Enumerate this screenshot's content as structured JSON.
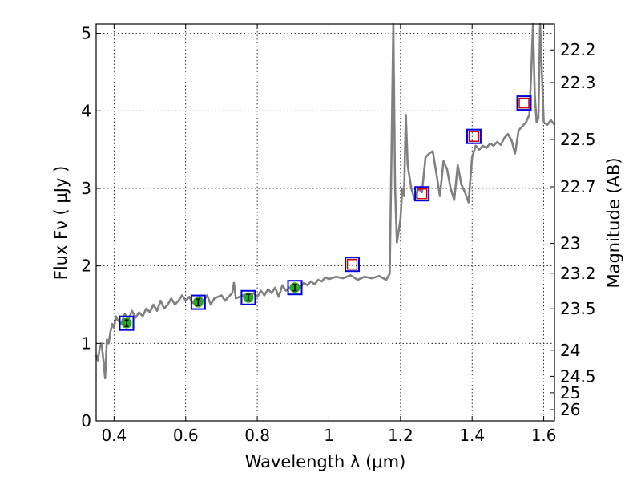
{
  "chart_data": {
    "type": "line",
    "title": "",
    "xlabel": "Wavelength  λ (μm)",
    "ylabel": "Flux  Fν  ( μJy )",
    "y2label": "Magnitude (AB)",
    "xlim": [
      0.35,
      1.63
    ],
    "ylim": [
      0,
      5.12
    ],
    "grid": true,
    "x_ticks": [
      {
        "value": 0.4,
        "label": "0.4"
      },
      {
        "value": 0.6,
        "label": "0.6"
      },
      {
        "value": 0.8,
        "label": "0.8"
      },
      {
        "value": 1.0,
        "label": "1"
      },
      {
        "value": 1.2,
        "label": "1.2"
      },
      {
        "value": 1.4,
        "label": "1.4"
      },
      {
        "value": 1.6,
        "label": "1.6"
      }
    ],
    "y_ticks": [
      {
        "value": 0,
        "label": "0"
      },
      {
        "value": 1,
        "label": "1"
      },
      {
        "value": 2,
        "label": "2"
      },
      {
        "value": 3,
        "label": "3"
      },
      {
        "value": 4,
        "label": "4"
      },
      {
        "value": 5,
        "label": "5"
      }
    ],
    "mag_ticks": [
      {
        "value": 22.2,
        "label": "22.2"
      },
      {
        "value": 22.3,
        "label": "22.3"
      },
      {
        "value": 22.5,
        "label": "22.5"
      },
      {
        "value": 22.7,
        "label": "22.7"
      },
      {
        "value": 23.0,
        "label": "23"
      },
      {
        "value": 23.2,
        "label": "23.2"
      },
      {
        "value": 23.5,
        "label": "23.5"
      },
      {
        "value": 24.0,
        "label": "24"
      },
      {
        "value": 24.5,
        "label": "24.5"
      },
      {
        "value": 25.0,
        "label": "25"
      },
      {
        "value": 26.0,
        "label": "26"
      }
    ],
    "spectrum": {
      "color": "#808080",
      "x": [
        0.35,
        0.355,
        0.36,
        0.365,
        0.37,
        0.375,
        0.38,
        0.385,
        0.39,
        0.395,
        0.4,
        0.405,
        0.41,
        0.42,
        0.43,
        0.44,
        0.45,
        0.46,
        0.47,
        0.48,
        0.49,
        0.5,
        0.51,
        0.52,
        0.53,
        0.54,
        0.55,
        0.56,
        0.57,
        0.58,
        0.59,
        0.6,
        0.61,
        0.62,
        0.63,
        0.64,
        0.65,
        0.66,
        0.67,
        0.68,
        0.69,
        0.7,
        0.71,
        0.72,
        0.73,
        0.735,
        0.74,
        0.75,
        0.76,
        0.77,
        0.78,
        0.79,
        0.8,
        0.81,
        0.82,
        0.83,
        0.84,
        0.85,
        0.86,
        0.87,
        0.88,
        0.89,
        0.9,
        0.91,
        0.92,
        0.93,
        0.94,
        0.95,
        0.96,
        0.97,
        0.98,
        0.99,
        1.0,
        1.02,
        1.04,
        1.06,
        1.08,
        1.1,
        1.12,
        1.14,
        1.16,
        1.17,
        1.175,
        1.18,
        1.185,
        1.19,
        1.2,
        1.205,
        1.21,
        1.215,
        1.22,
        1.23,
        1.24,
        1.25,
        1.26,
        1.27,
        1.28,
        1.29,
        1.3,
        1.31,
        1.32,
        1.33,
        1.34,
        1.35,
        1.36,
        1.37,
        1.38,
        1.39,
        1.4,
        1.41,
        1.42,
        1.43,
        1.44,
        1.45,
        1.46,
        1.47,
        1.48,
        1.49,
        1.5,
        1.51,
        1.52,
        1.53,
        1.54,
        1.55,
        1.56,
        1.565,
        1.57,
        1.575,
        1.58,
        1.585,
        1.59,
        1.6,
        1.61,
        1.62,
        1.63
      ],
      "y": [
        0.85,
        0.78,
        0.95,
        1.0,
        0.8,
        0.55,
        1.05,
        1.0,
        1.15,
        1.25,
        1.2,
        1.35,
        1.3,
        1.25,
        1.38,
        1.3,
        1.42,
        1.33,
        1.4,
        1.35,
        1.45,
        1.4,
        1.5,
        1.42,
        1.55,
        1.45,
        1.5,
        1.58,
        1.5,
        1.55,
        1.62,
        1.55,
        1.6,
        1.52,
        1.58,
        1.6,
        1.55,
        1.62,
        1.5,
        1.58,
        1.6,
        1.62,
        1.55,
        1.6,
        1.65,
        1.78,
        1.58,
        1.6,
        1.62,
        1.55,
        1.6,
        1.65,
        1.6,
        1.68,
        1.62,
        1.7,
        1.65,
        1.72,
        1.6,
        1.75,
        1.68,
        1.72,
        1.7,
        1.75,
        1.72,
        1.78,
        1.75,
        1.8,
        1.76,
        1.82,
        1.8,
        1.85,
        1.83,
        1.86,
        1.84,
        1.88,
        1.82,
        1.86,
        1.84,
        1.87,
        1.82,
        1.9,
        3.5,
        5.5,
        3.0,
        2.3,
        2.6,
        3.0,
        2.9,
        3.95,
        3.3,
        3.0,
        2.85,
        3.0,
        2.95,
        3.4,
        3.45,
        3.48,
        3.2,
        2.9,
        3.35,
        3.25,
        3.0,
        2.85,
        3.3,
        3.05,
        2.95,
        2.82,
        3.4,
        3.55,
        3.5,
        3.55,
        3.52,
        3.58,
        3.55,
        3.6,
        3.56,
        3.65,
        3.7,
        3.62,
        3.45,
        3.75,
        3.8,
        3.85,
        3.95,
        4.5,
        5.5,
        4.2,
        3.85,
        3.9,
        5.5,
        3.85,
        3.82,
        3.88,
        3.82
      ]
    },
    "series": [
      {
        "marker": "filled-circle-boxed",
        "color": "#22aa22",
        "x": [
          0.435,
          0.635,
          0.775,
          0.905
        ],
        "y": [
          1.26,
          1.53,
          1.59,
          1.72
        ]
      },
      {
        "marker": "open-square-boxed",
        "color": "#cc0000",
        "x": [
          1.065,
          1.26,
          1.405,
          1.545
        ],
        "y": [
          2.02,
          2.93,
          3.67,
          4.1
        ]
      }
    ]
  }
}
